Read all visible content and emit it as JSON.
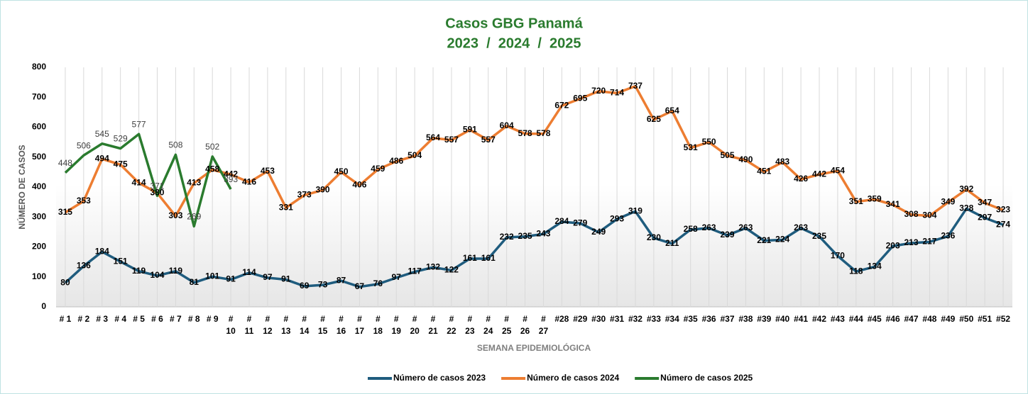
{
  "chart_data": {
    "type": "line",
    "title": "Casos GBG Panamá",
    "subtitle": "2023  /  2024  /  2025",
    "y_label": "NÚMERO DE CASOS",
    "x_label": "SEMANA EPIDEMIOLÓGICA",
    "categories": [
      "# 1",
      "# 2",
      "# 3",
      "# 4",
      "# 5",
      "# 6",
      "# 7",
      "# 8",
      "# 9",
      "# 10",
      "# 11",
      "# 12",
      "# 13",
      "# 14",
      "# 15",
      "# 16",
      "# 17",
      "# 18",
      "# 19",
      "# 20",
      "# 21",
      "# 22",
      "# 23",
      "# 24",
      "# 25",
      "# 26",
      "# 27",
      "#28",
      "#29",
      "#30",
      "#31",
      "#32",
      "#33",
      "#34",
      "#35",
      "#36",
      "#37",
      "#38",
      "#39",
      "#40",
      "#41",
      "#42",
      "#43",
      "#44",
      "#45",
      "#46",
      "#47",
      "#48",
      "#49",
      "#50",
      "#51",
      "#52"
    ],
    "series": [
      {
        "name": "Número de casos 2023",
        "color": "#1f5c7e",
        "values": [
          80,
          136,
          184,
          151,
          119,
          104,
          119,
          81,
          101,
          91,
          114,
          97,
          91,
          69,
          73,
          87,
          67,
          76,
          97,
          117,
          132,
          122,
          161,
          161,
          232,
          235,
          243,
          284,
          279,
          249,
          293,
          319,
          230,
          211,
          258,
          263,
          239,
          263,
          221,
          224,
          263,
          235,
          170,
          118,
          134,
          203,
          213,
          217,
          236,
          328,
          297,
          274
        ]
      },
      {
        "name": "Número de casos 2024",
        "color": "#ed7d31",
        "values": [
          315,
          353,
          494,
          475,
          414,
          380,
          303,
          413,
          458,
          442,
          416,
          453,
          331,
          373,
          390,
          450,
          406,
          459,
          486,
          504,
          564,
          557,
          591,
          557,
          604,
          578,
          578,
          672,
          695,
          720,
          714,
          737,
          625,
          654,
          531,
          550,
          505,
          490,
          451,
          483,
          426,
          442,
          454,
          351,
          359,
          341,
          308,
          304,
          349,
          392,
          347,
          323
        ]
      },
      {
        "name": "Número de casos 2025",
        "color": "#2a7b2e",
        "values": [
          448,
          506,
          545,
          529,
          577,
          371,
          508,
          269,
          502,
          393,
          null,
          null,
          null,
          null,
          null,
          null,
          null,
          null,
          null,
          null,
          null,
          null,
          null,
          null,
          null,
          null,
          null,
          null,
          null,
          null,
          null,
          null,
          null,
          null,
          null,
          null,
          null,
          null,
          null,
          null,
          null,
          null,
          null,
          null,
          null,
          null,
          null,
          null,
          null,
          null,
          null,
          null
        ]
      }
    ],
    "ylim": [
      0,
      800
    ],
    "yticks": [
      0,
      100,
      200,
      300,
      400,
      500,
      600,
      700,
      800
    ],
    "grid": true,
    "legend": "bottom"
  }
}
